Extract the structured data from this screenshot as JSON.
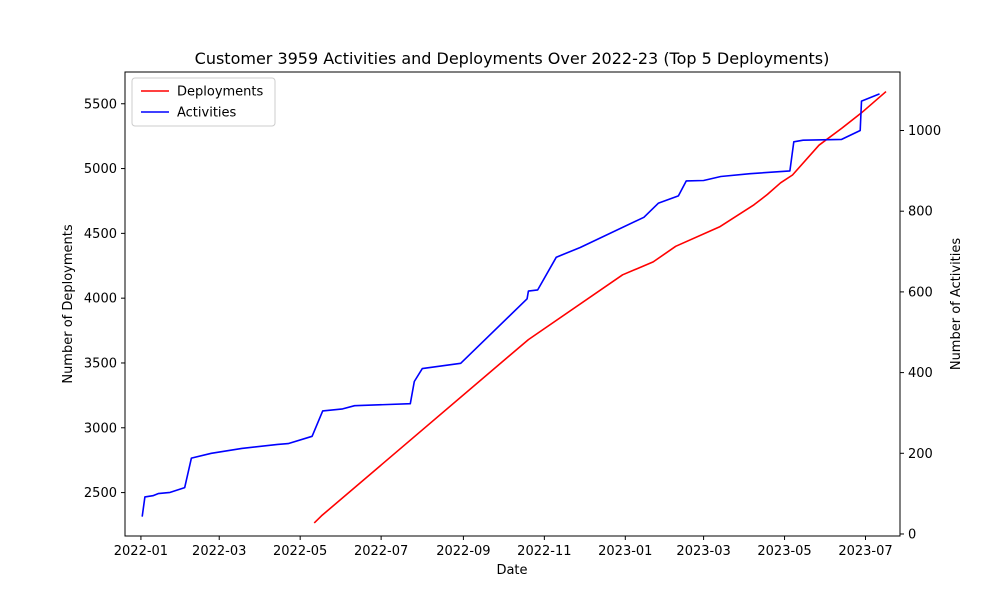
{
  "chart_data": {
    "type": "line",
    "title": "Customer 3959 Activities and Deployments Over 2022-23 (Top 5 Deployments)",
    "xlabel": "Date",
    "ylabel_left": "Number of Deployments",
    "ylabel_right": "Number of Activities",
    "x_ticks": [
      "2022-01",
      "2022-03",
      "2022-05",
      "2022-07",
      "2022-09",
      "2022-11",
      "2023-01",
      "2023-03",
      "2023-05",
      "2023-07"
    ],
    "y_left_ticks": [
      2500,
      3000,
      3500,
      4000,
      4500,
      5000,
      5500
    ],
    "y_right_ticks": [
      0,
      200,
      400,
      600,
      800,
      1000
    ],
    "y_left_range": [
      2165,
      5745
    ],
    "y_right_range": [
      -5,
      1145
    ],
    "x_range": [
      "2021-12-20",
      "2023-07-27"
    ],
    "legend_position": "upper left",
    "series": [
      {
        "name": "Deployments",
        "axis": "left",
        "color": "#ff0000",
        "points": [
          [
            "2022-05-12",
            2270
          ],
          [
            "2022-05-17",
            2320
          ],
          [
            "2022-10-05",
            3550
          ],
          [
            "2022-10-20",
            3680
          ],
          [
            "2022-12-30",
            4180
          ],
          [
            "2023-01-22",
            4280
          ],
          [
            "2023-02-08",
            4400
          ],
          [
            "2023-03-13",
            4550
          ],
          [
            "2023-04-08",
            4720
          ],
          [
            "2023-04-18",
            4800
          ],
          [
            "2023-04-28",
            4890
          ],
          [
            "2023-05-07",
            4950
          ],
          [
            "2023-05-27",
            5180
          ],
          [
            "2023-06-13",
            5310
          ],
          [
            "2023-06-28",
            5430
          ],
          [
            "2023-07-16",
            5590
          ]
        ]
      },
      {
        "name": "Activities",
        "axis": "right",
        "color": "#0000ff",
        "points": [
          [
            "2022-01-02",
            45
          ],
          [
            "2022-01-04",
            92
          ],
          [
            "2022-01-10",
            95
          ],
          [
            "2022-01-14",
            100
          ],
          [
            "2022-01-23",
            103
          ],
          [
            "2022-02-03",
            115
          ],
          [
            "2022-02-08",
            188
          ],
          [
            "2022-02-23",
            200
          ],
          [
            "2022-03-18",
            212
          ],
          [
            "2022-04-14",
            222
          ],
          [
            "2022-04-22",
            224
          ],
          [
            "2022-05-10",
            242
          ],
          [
            "2022-05-18",
            305
          ],
          [
            "2022-06-02",
            310
          ],
          [
            "2022-06-11",
            318
          ],
          [
            "2022-07-23",
            323
          ],
          [
            "2022-07-26",
            378
          ],
          [
            "2022-08-01",
            410
          ],
          [
            "2022-08-30",
            423
          ],
          [
            "2022-10-19",
            583
          ],
          [
            "2022-10-20",
            602
          ],
          [
            "2022-10-27",
            605
          ],
          [
            "2022-11-10",
            686
          ],
          [
            "2022-11-28",
            710
          ],
          [
            "2023-01-15",
            785
          ],
          [
            "2023-01-26",
            820
          ],
          [
            "2023-02-10",
            838
          ],
          [
            "2023-02-16",
            875
          ],
          [
            "2023-03-01",
            876
          ],
          [
            "2023-03-14",
            886
          ],
          [
            "2023-04-05",
            893
          ],
          [
            "2023-05-05",
            900
          ],
          [
            "2023-05-08",
            972
          ],
          [
            "2023-05-15",
            976
          ],
          [
            "2023-06-13",
            978
          ],
          [
            "2023-06-27",
            1000
          ],
          [
            "2023-06-28",
            1073
          ],
          [
            "2023-07-11",
            1090
          ]
        ]
      }
    ]
  }
}
